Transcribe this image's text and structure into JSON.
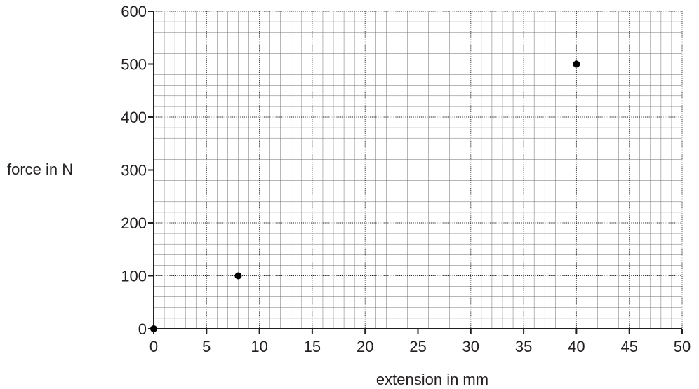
{
  "chart_data": {
    "type": "scatter",
    "title": "",
    "xlabel": "extension in mm",
    "ylabel": "force in N",
    "xlim": [
      0,
      50
    ],
    "ylim": [
      0,
      600
    ],
    "x_ticks": [
      "0",
      "5",
      "10",
      "15",
      "20",
      "25",
      "30",
      "35",
      "40",
      "45",
      "50"
    ],
    "y_ticks": [
      "0",
      "100",
      "200",
      "300",
      "400",
      "500",
      "600"
    ],
    "x_major_step": 5,
    "y_major_step": 100,
    "x_minor_per_major": 5,
    "y_minor_per_major": 5,
    "grid": true,
    "series": [
      {
        "points": [
          {
            "x": 0,
            "y": 0
          },
          {
            "x": 8,
            "y": 100
          },
          {
            "x": 40,
            "y": 500
          }
        ]
      }
    ],
    "colors": {
      "ink": "#231f20",
      "point": "#000000"
    }
  }
}
